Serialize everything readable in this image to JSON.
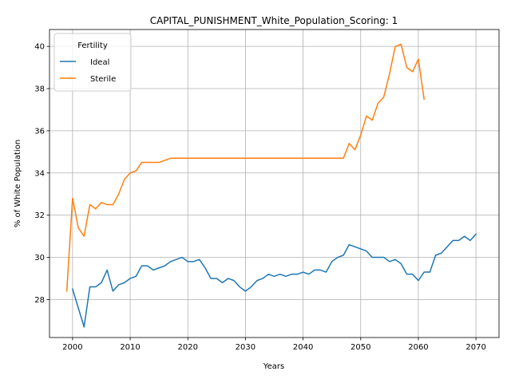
{
  "chart_data": {
    "type": "line",
    "title": "CAPITAL_PUNISHMENT_White_Population_Scoring: 1",
    "xlabel": "Years",
    "ylabel": "% of White Population",
    "xlim": [
      1996,
      2074
    ],
    "ylim": [
      26.2,
      40.8
    ],
    "xticks": [
      2000,
      2010,
      2020,
      2030,
      2040,
      2050,
      2060,
      2070
    ],
    "yticks": [
      28,
      30,
      32,
      34,
      36,
      38,
      40
    ],
    "grid": true,
    "legend": {
      "title": "Fertility",
      "placement": "top-left",
      "entries": [
        "Ideal",
        "Sterile"
      ]
    },
    "series": [
      {
        "name": "Ideal",
        "color": "#1f77b4",
        "x": [
          2000,
          2001,
          2002,
          2003,
          2004,
          2005,
          2006,
          2007,
          2008,
          2009,
          2010,
          2011,
          2012,
          2013,
          2014,
          2015,
          2016,
          2017,
          2018,
          2019,
          2020,
          2021,
          2022,
          2023,
          2024,
          2025,
          2026,
          2027,
          2028,
          2029,
          2030,
          2031,
          2032,
          2033,
          2034,
          2035,
          2036,
          2037,
          2038,
          2039,
          2040,
          2041,
          2042,
          2043,
          2044,
          2045,
          2046,
          2047,
          2048,
          2049,
          2050,
          2051,
          2052,
          2053,
          2054,
          2055,
          2056,
          2057,
          2058,
          2059,
          2060,
          2061,
          2062,
          2063,
          2064,
          2065,
          2066,
          2067,
          2068,
          2069,
          2070
        ],
        "y": [
          28.5,
          27.6,
          26.7,
          28.6,
          28.6,
          28.8,
          29.4,
          28.4,
          28.7,
          28.8,
          29.0,
          29.1,
          29.6,
          29.6,
          29.4,
          29.5,
          29.6,
          29.8,
          29.9,
          30.0,
          29.8,
          29.8,
          29.9,
          29.5,
          29.0,
          29.0,
          28.8,
          29.0,
          28.9,
          28.6,
          28.4,
          28.6,
          28.9,
          29.0,
          29.2,
          29.1,
          29.2,
          29.1,
          29.2,
          29.2,
          29.3,
          29.2,
          29.4,
          29.4,
          29.3,
          29.8,
          30.0,
          30.1,
          30.6,
          30.5,
          30.4,
          30.3,
          30.0,
          30.0,
          30.0,
          29.8,
          29.9,
          29.7,
          29.2,
          29.2,
          28.9,
          29.3,
          29.3,
          30.1,
          30.2,
          30.5,
          30.8,
          30.8,
          31.0,
          30.8,
          31.1
        ]
      },
      {
        "name": "Sterile",
        "color": "#ff7f0e",
        "x": [
          1999,
          2000,
          2001,
          2002,
          2003,
          2004,
          2005,
          2006,
          2007,
          2008,
          2009,
          2010,
          2011,
          2012,
          2013,
          2014,
          2015,
          2016,
          2017,
          2018,
          2019,
          2020,
          2021,
          2022,
          2023,
          2024,
          2025,
          2026,
          2027,
          2028,
          2029,
          2030,
          2031,
          2032,
          2033,
          2034,
          2035,
          2036,
          2037,
          2038,
          2039,
          2040,
          2041,
          2042,
          2043,
          2044,
          2045,
          2046,
          2047,
          2048,
          2049,
          2050,
          2051,
          2052,
          2053,
          2054,
          2055,
          2056,
          2057,
          2058,
          2059,
          2060,
          2061
        ],
        "y": [
          28.4,
          32.8,
          31.4,
          31.0,
          32.5,
          32.3,
          32.6,
          32.5,
          32.5,
          33.0,
          33.7,
          34.0,
          34.1,
          34.5,
          34.5,
          34.5,
          34.5,
          34.6,
          34.7,
          34.7,
          34.7,
          34.7,
          34.7,
          34.7,
          34.7,
          34.7,
          34.7,
          34.7,
          34.7,
          34.7,
          34.7,
          34.7,
          34.7,
          34.7,
          34.7,
          34.7,
          34.7,
          34.7,
          34.7,
          34.7,
          34.7,
          34.7,
          34.7,
          34.7,
          34.7,
          34.7,
          34.7,
          34.7,
          34.7,
          35.4,
          35.1,
          35.8,
          36.7,
          36.5,
          37.3,
          37.6,
          38.7,
          40.0,
          40.1,
          39.0,
          38.8,
          39.4,
          37.5
        ]
      }
    ]
  }
}
